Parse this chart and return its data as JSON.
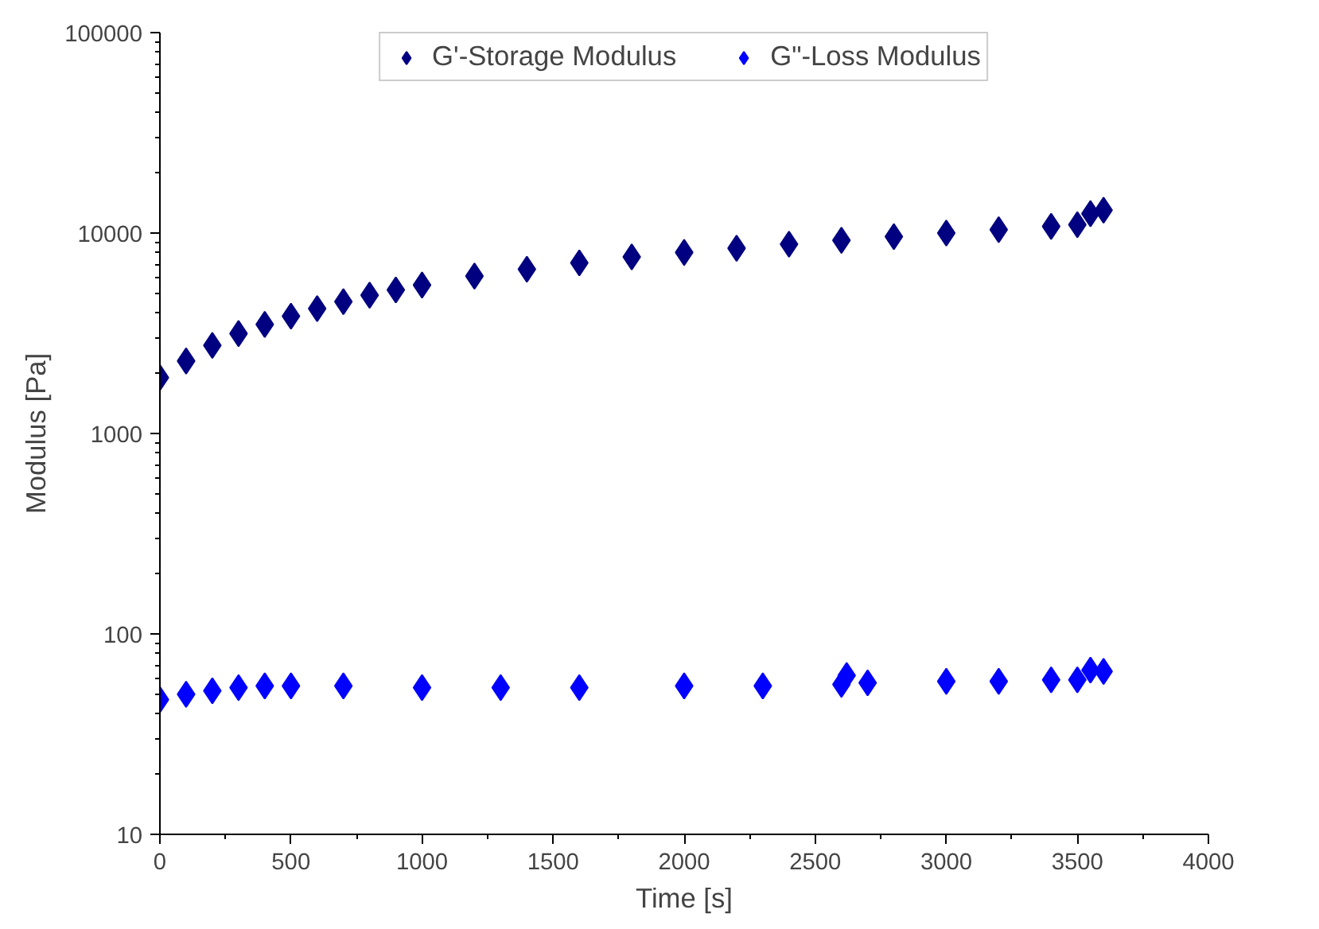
{
  "chart_data": {
    "type": "scatter",
    "xlabel": "Time [s]",
    "ylabel": "Modulus [Pa]",
    "log": "y",
    "marker": "diamond",
    "legend": "top",
    "grid": false,
    "xlim": [
      0,
      4000
    ],
    "xticks": [
      0,
      500,
      1000,
      1500,
      2000,
      2500,
      3000,
      3500,
      4000
    ],
    "ylim": [
      10,
      100000
    ],
    "yticks": [
      10,
      100,
      1000,
      10000,
      100000
    ],
    "series": [
      {
        "name": "G'-Storage Modulus",
        "color": "#000080",
        "x": [
          0,
          100,
          200,
          300,
          400,
          500,
          600,
          700,
          800,
          900,
          1000,
          1200,
          1400,
          1600,
          1800,
          2000,
          2200,
          2400,
          2600,
          2800,
          3000,
          3200,
          3400,
          3500,
          3550,
          3600
        ],
        "values": [
          1900,
          2300,
          2750,
          3150,
          3500,
          3850,
          4200,
          4550,
          4900,
          5200,
          5500,
          6100,
          6600,
          7100,
          7600,
          8000,
          8400,
          8800,
          9200,
          9600,
          10000,
          10400,
          10800,
          11000,
          12500,
          13000
        ]
      },
      {
        "name": "G\"-Loss Modulus",
        "color": "#0000ff",
        "x": [
          0,
          100,
          200,
          300,
          400,
          500,
          700,
          1000,
          1300,
          1600,
          2000,
          2300,
          2600,
          2620,
          2700,
          3000,
          3200,
          3400,
          3500,
          3550,
          3600
        ],
        "values": [
          47,
          50,
          52,
          54,
          55,
          55,
          55,
          54,
          54,
          54,
          55,
          55,
          56,
          62,
          57,
          58,
          58,
          59,
          59,
          66,
          65
        ]
      }
    ]
  }
}
